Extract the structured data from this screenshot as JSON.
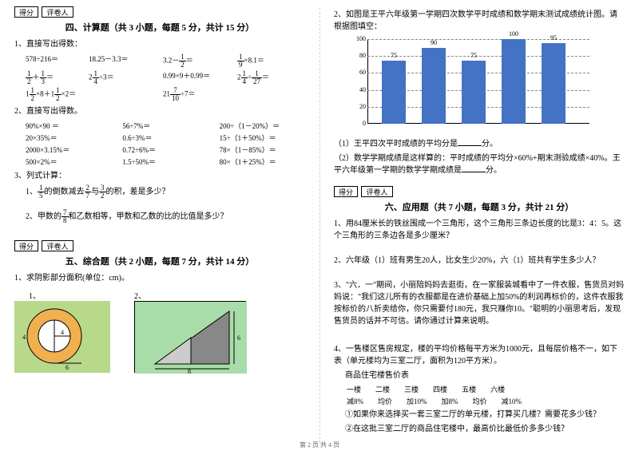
{
  "left": {
    "score_label1": "得分",
    "score_label2": "评卷人",
    "sec4_title": "四、计算题（共 3 小题，每题 5 分，共计 15 分）",
    "q1": "1、直接写出得数：",
    "r1c1": "578÷216＝",
    "r1c2": "18.25－3.3＝",
    "r1c3": "3.2－",
    "r1c3f_n": "1",
    "r1c3f_d": "2",
    "r1c3b": "＝",
    "r1c4f_n": "1",
    "r1c4f_d": "9",
    "r1c4b": "×8.1＝",
    "r2c1f1_n": "1",
    "r2c1f1_d": "2",
    "r2c1m": "＋",
    "r2c1f2_n": "1",
    "r2c1f2_d": "3",
    "r2c1e": "＝",
    "r2c2a": "2",
    "r2c2f_n": "1",
    "r2c2f_d": "4",
    "r2c2b": "÷3＝",
    "r2c3": "0.99×9＋0.99＝",
    "r2c4a": "2",
    "r2c4f1_n": "1",
    "r2c4f1_d": "4",
    "r2c4m": "÷",
    "r2c4f2_n": "1",
    "r2c4f2_d": "27",
    "r2c4e": "＝",
    "r3c1a": "1",
    "r3c1f1_n": "1",
    "r3c1f1_d": "2",
    "r3c1m": "×8＋1",
    "r3c1f2_n": "1",
    "r3c1f2_d": "2",
    "r3c1e": "×2＝",
    "r3c2a": "21",
    "r3c2f_n": "7",
    "r3c2f_d": "10",
    "r3c2b": "÷7＝",
    "q2": "2、直接写出得数。",
    "g2": [
      [
        "90%×90 ＝",
        "56÷7%＝",
        "200÷（1－20%）＝"
      ],
      [
        "20×35%＝",
        "0.6÷3%＝",
        "15÷（1＋50%）＝"
      ],
      [
        "2000×3.15%＝",
        "0.72÷6%＝",
        "78×（1－85%）＝"
      ],
      [
        "500×2%＝",
        "1.5÷50%＝",
        "80×（1＋25%）＝"
      ]
    ],
    "q3": "3、列式计算：",
    "q3a_pre": "1、",
    "q3a_f_n": "1",
    "q3a_f_d": "5",
    "q3a_mid": "的倒数减去",
    "q3a_f2_n": "2",
    "q3a_f2_d": "7",
    "q3a_mid2": "与",
    "q3a_f3_n": "3",
    "q3a_f3_d": "2",
    "q3a_end": "的积，差是多少？",
    "q3b_pre": "2、甲数的",
    "q3b_f_n": "7",
    "q3b_f_d": "8",
    "q3b_end": "和乙数相等，甲数和乙数的比的比值是多少？",
    "sec5_title": "五、综合题（共 2 小题，每题 7 分，共计 14 分）",
    "q5": "1、求阴影部分面积(单位：cm)。",
    "lab1": "1、",
    "lab2": "2、",
    "ring_r": "4",
    "ring_below": "6",
    "ring_left": "4",
    "tri_top": "8",
    "tri_side": "6"
  },
  "right": {
    "q2_title": "2、如图是王平六年级第一学期四次数学平时成绩和数学期末测试成绩统计图。请根据图填空：",
    "chart": {
      "yticks": [
        "0",
        "20",
        "40",
        "60",
        "80",
        "100"
      ],
      "bars": [
        {
          "label": "75",
          "h": 75
        },
        {
          "label": "90",
          "h": 90
        },
        {
          "label": "75",
          "h": 75
        },
        {
          "label": "100",
          "h": 100
        },
        {
          "label": "95",
          "h": 95
        }
      ],
      "bar_color": "#4472c4"
    },
    "r2a": "（1）王平四次平时成绩的平均分是",
    "r2a_end": "分。",
    "r2b": "（2）数学学期成绩是这样算的：平时成绩的平均分×60%+期末测验成绩×40%。王平六年级第一学期的数学学期成绩是",
    "r2b_end": "分。",
    "score_label1": "得分",
    "score_label2": "评卷人",
    "sec6_title": "六、应用题（共 7 小题，每题 3 分，共计 21 分）",
    "a1": "1、用84厘米长的铁丝围成一个三角形，这个三角形三条边长度的比是3：4：5。这个三角形的三条边各是多少厘米？",
    "a2": "2、六年级（1）班有男生20人，比女生少20%，六（1）班共有学生多少人？",
    "a3": "3、\"六．一\"期间，小丽陪妈妈去逛街，在一家服装城看中了一件衣服，售货员对妈妈说：\"我们这儿所有的衣服都是在进价基础上加50%的利润再标价的，这件衣服我按标价的八折卖给你，你只需要付180元，我只赚你10。\"聪明的小丽思考后，发现售货员的话并不可信。请你通过计算来说明。",
    "a4": "4、一售楼区售房规定，楼的平均价格每平方米为1000元，且每层价格不一，如下表（单元楼均为三室二厅，面积为120平方米）。",
    "a4t": "商品住宅楼售价表",
    "a4h": [
      "一楼",
      "二楼",
      "三楼",
      "四楼",
      "五楼",
      "六楼"
    ],
    "a4r": [
      "减8%",
      "均价",
      "加10%",
      "加8%",
      "均价",
      "减10%"
    ],
    "a4q1": "①如果你来选择买一套三室二厅的单元楼，打算买几楼？需要花多少钱？",
    "a4q2": "②在这批三室二厅的商品住宅楼中，最高价比最低价多多少钱？"
  },
  "footer": "第 2 页 共 4 页"
}
